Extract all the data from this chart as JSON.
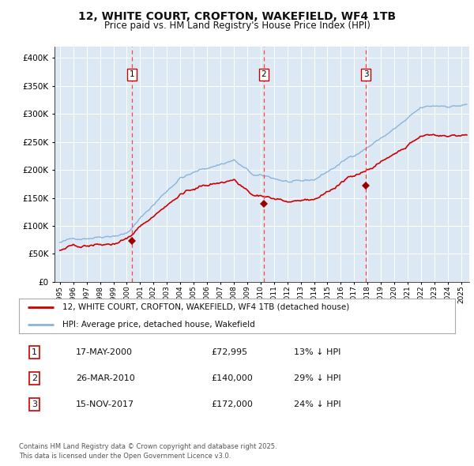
{
  "title1": "12, WHITE COURT, CROFTON, WAKEFIELD, WF4 1TB",
  "title2": "Price paid vs. HM Land Registry's House Price Index (HPI)",
  "bg_color": "#dce9f5",
  "grid_color": "#ffffff",
  "hpi_color": "#8ab4d8",
  "price_color": "#cc0000",
  "sale_marker_color": "#990000",
  "vline_color": "#ff4444",
  "sale_events": [
    {
      "date_num": 2000.38,
      "price": 72995,
      "label": "1"
    },
    {
      "date_num": 2010.23,
      "price": 140000,
      "label": "2"
    },
    {
      "date_num": 2017.88,
      "price": 172000,
      "label": "3"
    }
  ],
  "legend_entries": [
    {
      "label": "12, WHITE COURT, CROFTON, WAKEFIELD, WF4 1TB (detached house)",
      "color": "#cc0000"
    },
    {
      "label": "HPI: Average price, detached house, Wakefield",
      "color": "#8ab4d8"
    }
  ],
  "table_rows": [
    {
      "num": "1",
      "date": "17-MAY-2000",
      "price": "£72,995",
      "note": "13% ↓ HPI"
    },
    {
      "num": "2",
      "date": "26-MAR-2010",
      "price": "£140,000",
      "note": "29% ↓ HPI"
    },
    {
      "num": "3",
      "date": "15-NOV-2017",
      "price": "£172,000",
      "note": "24% ↓ HPI"
    }
  ],
  "footer": "Contains HM Land Registry data © Crown copyright and database right 2025.\nThis data is licensed under the Open Government Licence v3.0.",
  "ylim": [
    0,
    420000
  ],
  "xlim_start": 1994.6,
  "xlim_end": 2025.6
}
